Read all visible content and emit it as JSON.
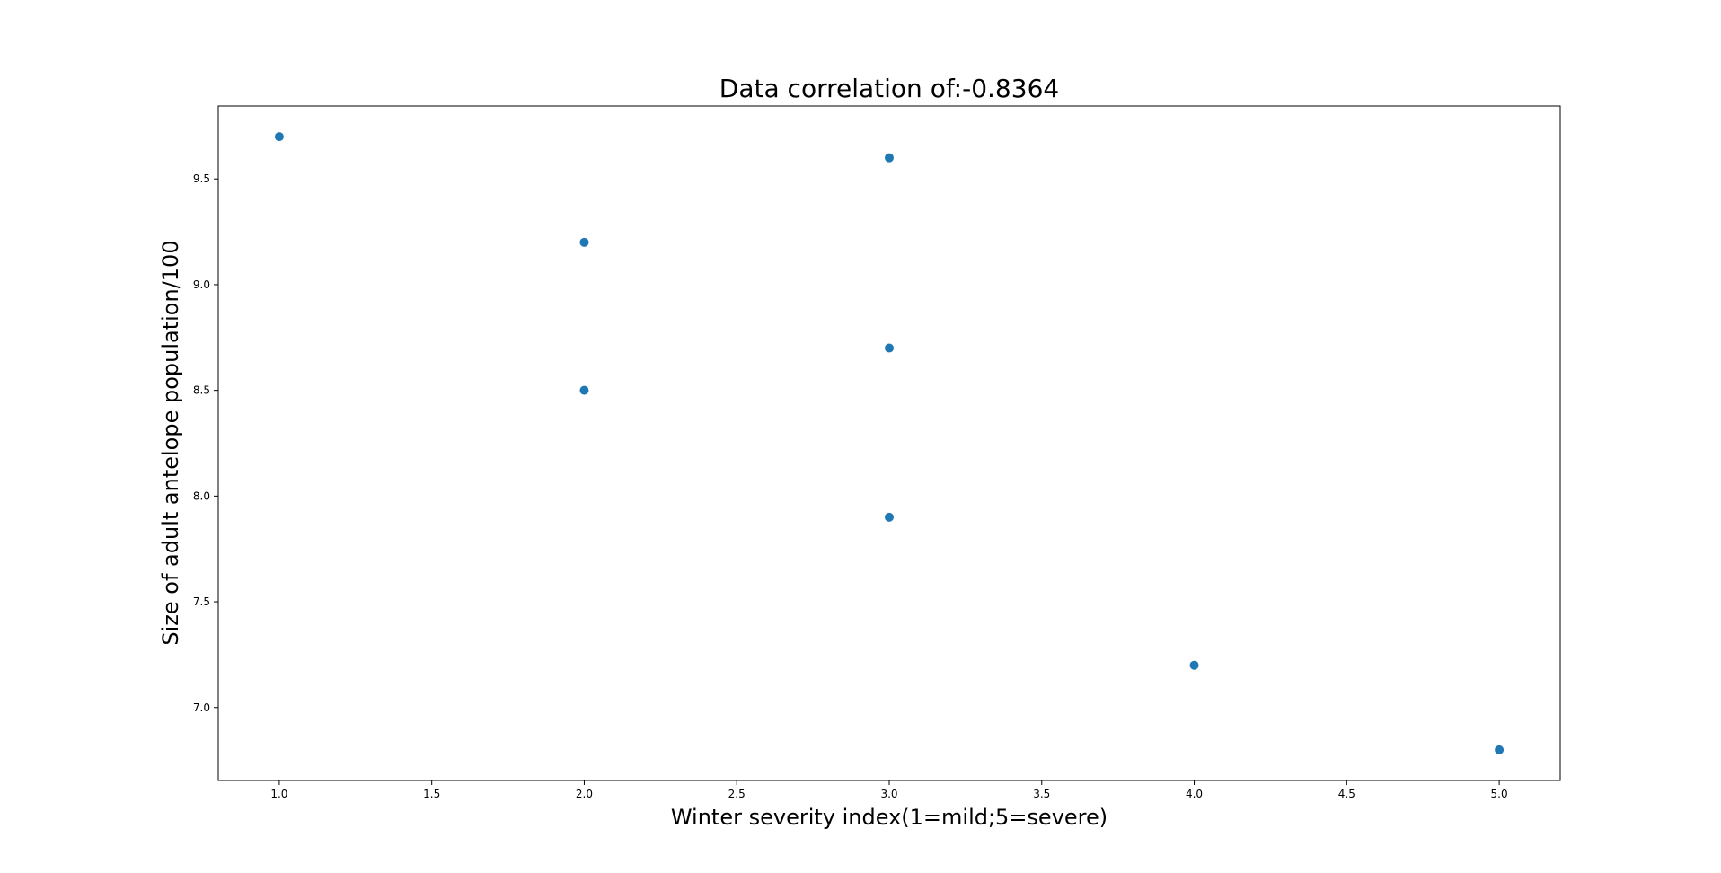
{
  "chart_data": {
    "type": "scatter",
    "title": "Data correlation of:-0.8364",
    "xlabel": "Winter severity index(1=mild;5=severe)",
    "ylabel": "Size of adult antelope population/100",
    "xlim": [
      0.8,
      5.2
    ],
    "ylim": [
      6.655,
      9.845
    ],
    "xticks": [
      1.0,
      1.5,
      2.0,
      2.5,
      3.0,
      3.5,
      4.0,
      4.5,
      5.0
    ],
    "xtick_labels": [
      "1.0",
      "1.5",
      "2.0",
      "2.5",
      "3.0",
      "3.5",
      "4.0",
      "4.5",
      "5.0"
    ],
    "yticks": [
      7.0,
      7.5,
      8.0,
      8.5,
      9.0,
      9.5
    ],
    "ytick_labels": [
      "7.0",
      "7.5",
      "8.0",
      "8.5",
      "9.0",
      "9.5"
    ],
    "grid": false,
    "marker_color": "#1f77b4",
    "x": [
      1,
      2,
      2,
      3,
      3,
      3,
      4,
      5
    ],
    "y": [
      9.7,
      9.2,
      8.5,
      9.6,
      8.7,
      7.9,
      7.2,
      6.8
    ]
  }
}
